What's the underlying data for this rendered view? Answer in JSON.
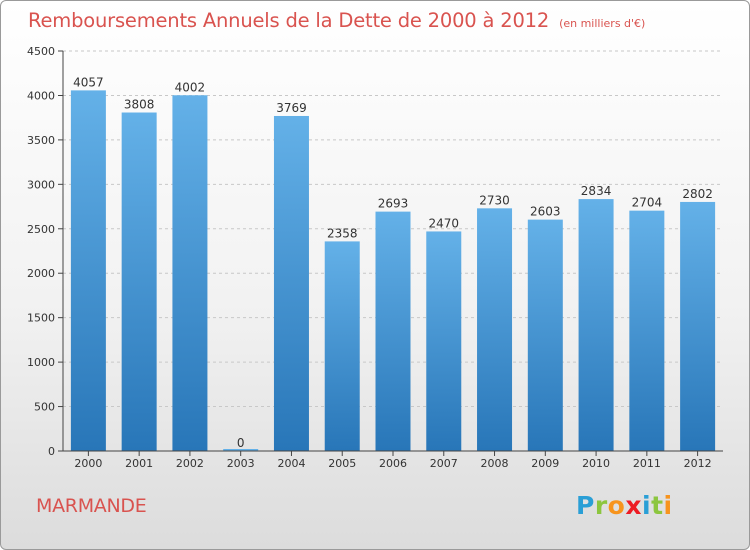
{
  "header": {
    "title": "Remboursements Annuels de la Dette de 2000 à 2012",
    "unit": "(en milliers d'€)"
  },
  "footer": {
    "commune": "MARMANDE",
    "logo_letters": [
      {
        "ch": "P",
        "color": "#2a9fd6"
      },
      {
        "ch": "r",
        "color": "#8cc63f"
      },
      {
        "ch": "o",
        "color": "#f7941d"
      },
      {
        "ch": "x",
        "color": "#ed1c24"
      },
      {
        "ch": "i",
        "color": "#2a9fd6"
      },
      {
        "ch": "t",
        "color": "#8cc63f"
      },
      {
        "ch": "i",
        "color": "#f7941d"
      }
    ]
  },
  "colors": {
    "bar_top": "#64b1e8",
    "bar_bottom": "#2876b8",
    "title": "#d9534f",
    "grid": "#c8c8c8"
  },
  "chart_data": {
    "type": "bar",
    "title": "Remboursements Annuels de la Dette de 2000 à 2012",
    "categories": [
      "2000",
      "2001",
      "2002",
      "2003",
      "2004",
      "2005",
      "2006",
      "2007",
      "2008",
      "2009",
      "2010",
      "2011",
      "2012"
    ],
    "values": [
      4057,
      3808,
      4002,
      0,
      3769,
      2358,
      2693,
      2470,
      2730,
      2603,
      2834,
      2704,
      2802
    ],
    "ylim": [
      0,
      4500
    ],
    "yticks": [
      0,
      500,
      1000,
      1500,
      2000,
      2500,
      3000,
      3500,
      4000,
      4500
    ],
    "grid": true,
    "data_labels": true
  }
}
